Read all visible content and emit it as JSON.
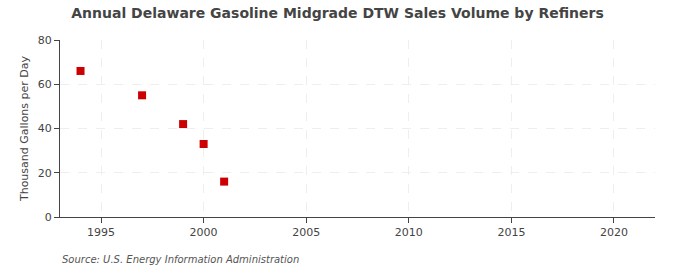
{
  "chart_data": {
    "type": "scatter",
    "title": "Annual Delaware Gasoline Midgrade DTW Sales Volume by Refiners",
    "ylabel": "Thousand Gallons per Day",
    "annotations": [
      "Source: U.S. Energy Information Administration"
    ],
    "x": [
      1994,
      1997,
      1999,
      2000,
      2001
    ],
    "values": [
      66,
      55,
      42,
      33,
      16
    ],
    "color": "#cc0000",
    "marker": "square",
    "xlim": [
      1993,
      2022
    ],
    "ylim": [
      0,
      80
    ],
    "xticks": [
      1995,
      2000,
      2005,
      2010,
      2015,
      2020
    ],
    "yticks": [
      0,
      20,
      40,
      60,
      80
    ],
    "grid": true
  }
}
